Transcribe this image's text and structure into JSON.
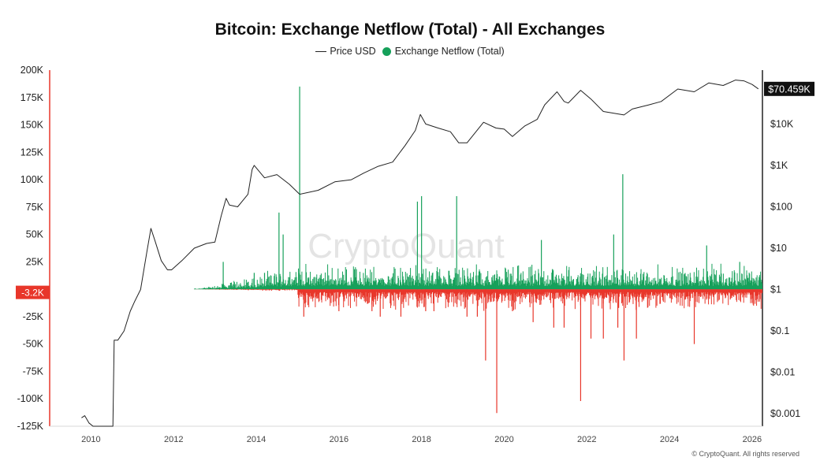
{
  "chart_data": {
    "type": "bar",
    "title": "Bitcoin: Exchange Netflow (Total) - All Exchanges",
    "legend": {
      "placement": "top-center",
      "items": [
        {
          "label": "Price USD",
          "symbol": "line",
          "color": "#222222"
        },
        {
          "label": "Exchange Netflow (Total)",
          "symbol": "dot",
          "color": "#16a05a"
        }
      ]
    },
    "watermark": "CryptoQuant",
    "copyright": "© CryptoQuant. All rights reserved",
    "colors": {
      "positive": "#16a05a",
      "negative": "#e8362a",
      "price": "#222222",
      "current_value_bg": "#111111",
      "left_axis_marker": "#e8362a"
    },
    "x_axis": {
      "type": "date",
      "range": [
        2009.0,
        2026.25
      ],
      "ticks": [
        "2010",
        "2012",
        "2014",
        "2016",
        "2018",
        "2020",
        "2022",
        "2024",
        "2026"
      ]
    },
    "y_axis_left": {
      "range": [
        -125000,
        200000
      ],
      "ticks": [
        "200K",
        "175K",
        "150K",
        "125K",
        "100K",
        "75K",
        "50K",
        "25K",
        "-25K",
        "-50K",
        "-75K",
        "-100K",
        "-125K"
      ]
    },
    "y_axis_right": {
      "scale": "log",
      "range": [
        0.0005,
        200000
      ],
      "ticks": [
        "$10K",
        "$1K",
        "$100",
        "$10",
        "$1",
        "$0.1",
        "$0.01",
        "$0.001"
      ]
    },
    "current_netflow_label": "-3.2K",
    "current_price_label": "$70.459K",
    "series": [
      {
        "name": "Price USD",
        "axis": "right",
        "points": [
          [
            2009.77,
            0.0008
          ],
          [
            2009.85,
            0.0009
          ],
          [
            2009.95,
            0.0006
          ],
          [
            2010.05,
            0.0005
          ],
          [
            2010.3,
            0.0005
          ],
          [
            2010.53,
            0.0005
          ],
          [
            2010.56,
            0.06
          ],
          [
            2010.65,
            0.06
          ],
          [
            2010.8,
            0.1
          ],
          [
            2010.95,
            0.3
          ],
          [
            2011.05,
            0.5
          ],
          [
            2011.2,
            1
          ],
          [
            2011.35,
            8
          ],
          [
            2011.45,
            30
          ],
          [
            2011.55,
            15
          ],
          [
            2011.7,
            5
          ],
          [
            2011.85,
            3
          ],
          [
            2011.95,
            3
          ],
          [
            2012.2,
            5
          ],
          [
            2012.5,
            10
          ],
          [
            2012.8,
            13
          ],
          [
            2013.0,
            14
          ],
          [
            2013.15,
            60
          ],
          [
            2013.27,
            160
          ],
          [
            2013.35,
            110
          ],
          [
            2013.55,
            100
          ],
          [
            2013.8,
            200
          ],
          [
            2013.9,
            800
          ],
          [
            2013.95,
            1000
          ],
          [
            2014.2,
            500
          ],
          [
            2014.5,
            600
          ],
          [
            2014.8,
            350
          ],
          [
            2015.05,
            200
          ],
          [
            2015.5,
            250
          ],
          [
            2015.9,
            400
          ],
          [
            2016.3,
            450
          ],
          [
            2016.6,
            650
          ],
          [
            2016.95,
            950
          ],
          [
            2017.3,
            1200
          ],
          [
            2017.6,
            3000
          ],
          [
            2017.85,
            7000
          ],
          [
            2017.97,
            17000
          ],
          [
            2018.1,
            10000
          ],
          [
            2018.4,
            8000
          ],
          [
            2018.7,
            6500
          ],
          [
            2018.9,
            3500
          ],
          [
            2019.1,
            3500
          ],
          [
            2019.5,
            11000
          ],
          [
            2019.8,
            8000
          ],
          [
            2020.0,
            7500
          ],
          [
            2020.2,
            5000
          ],
          [
            2020.5,
            9000
          ],
          [
            2020.8,
            13000
          ],
          [
            2020.98,
            29000
          ],
          [
            2021.28,
            60000
          ],
          [
            2021.45,
            35000
          ],
          [
            2021.55,
            32000
          ],
          [
            2021.85,
            65000
          ],
          [
            2022.1,
            40000
          ],
          [
            2022.4,
            20000
          ],
          [
            2022.9,
            16500
          ],
          [
            2023.1,
            23000
          ],
          [
            2023.5,
            29000
          ],
          [
            2023.8,
            35000
          ],
          [
            2024.2,
            70000
          ],
          [
            2024.6,
            60000
          ],
          [
            2024.95,
            98000
          ],
          [
            2025.3,
            85000
          ],
          [
            2025.6,
            115000
          ],
          [
            2025.8,
            110000
          ],
          [
            2026.0,
            90000
          ],
          [
            2026.15,
            70459
          ]
        ]
      },
      {
        "name": "Exchange Netflow (Total)",
        "axis": "left",
        "spikes": [
          [
            2013.2,
            25000
          ],
          [
            2013.95,
            15000
          ],
          [
            2014.2,
            15000
          ],
          [
            2014.55,
            70000
          ],
          [
            2014.65,
            50000
          ],
          [
            2015.05,
            185000
          ],
          [
            2015.15,
            -25000
          ],
          [
            2016.0,
            -20000
          ],
          [
            2016.8,
            -20000
          ],
          [
            2017.0,
            -25000
          ],
          [
            2017.5,
            -25000
          ],
          [
            2017.9,
            80000
          ],
          [
            2018.0,
            85000
          ],
          [
            2018.1,
            -20000
          ],
          [
            2018.3,
            -20000
          ],
          [
            2018.85,
            85000
          ],
          [
            2019.1,
            -25000
          ],
          [
            2019.35,
            -25000
          ],
          [
            2019.55,
            -65000
          ],
          [
            2019.82,
            -113000
          ],
          [
            2020.2,
            -20000
          ],
          [
            2020.7,
            -30000
          ],
          [
            2020.9,
            45000
          ],
          [
            2021.2,
            -35000
          ],
          [
            2021.45,
            -35000
          ],
          [
            2021.85,
            -102000
          ],
          [
            2022.1,
            -45000
          ],
          [
            2022.4,
            -45000
          ],
          [
            2022.65,
            50000
          ],
          [
            2022.75,
            -35000
          ],
          [
            2022.87,
            105000
          ],
          [
            2022.9,
            -65000
          ],
          [
            2023.2,
            -45000
          ],
          [
            2024.6,
            -50000
          ],
          [
            2024.9,
            40000
          ],
          [
            2025.7,
            25000
          ]
        ],
        "baseline": {
          "range": [
            2012.5,
            2026.25
          ],
          "typical_positive": 12000,
          "typical_negative": -10000
        }
      }
    ]
  }
}
